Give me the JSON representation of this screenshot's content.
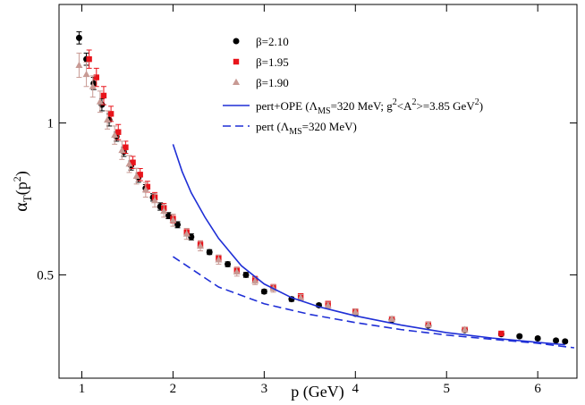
{
  "chart_data": {
    "type": "scatter",
    "xlabel": "p (GeV)",
    "ylabel": [
      "α",
      "T",
      "(p",
      "2",
      ")"
    ],
    "xlim": [
      0.75,
      6.43
    ],
    "ylim": [
      0.16,
      1.39
    ],
    "xticks": [
      1,
      2,
      3,
      4,
      5,
      6
    ],
    "yticks": [
      0.5,
      1
    ],
    "series": [
      {
        "name": [
          "β=2.10"
        ],
        "kind": "scatter",
        "marker": "circle",
        "color": "#000000",
        "x": [
          0.97,
          1.05,
          1.13,
          1.22,
          1.3,
          1.38,
          1.46,
          1.54,
          1.62,
          1.7,
          1.78,
          1.86,
          1.95,
          2.05,
          2.2,
          2.4,
          2.6,
          2.8,
          3.0,
          3.3,
          3.6,
          4.0,
          4.4,
          4.8,
          5.2,
          5.6,
          5.8,
          6.0,
          6.2,
          6.3
        ],
        "values": [
          1.28,
          1.21,
          1.13,
          1.06,
          1.01,
          0.955,
          0.905,
          0.86,
          0.82,
          0.785,
          0.755,
          0.725,
          0.695,
          0.665,
          0.625,
          0.575,
          0.535,
          0.5,
          0.445,
          0.42,
          0.4,
          0.372,
          0.352,
          0.333,
          0.318,
          0.305,
          0.298,
          0.291,
          0.284,
          0.281
        ],
        "errors": [
          0.02,
          0.02,
          0.02,
          0.02,
          0.02,
          0.015,
          0.015,
          0.015,
          0.015,
          0.012,
          0.012,
          0.012,
          0.01,
          0.01,
          0.01,
          0.008,
          0.008,
          0.008,
          0.007,
          0.007,
          0.006,
          0.006,
          0.005,
          0.005,
          0.005,
          0.005,
          0.005,
          0.005,
          0.005,
          0.005
        ]
      },
      {
        "name": [
          "β=1.95"
        ],
        "kind": "scatter",
        "marker": "square",
        "color": "#e8141b",
        "x": [
          1.08,
          1.16,
          1.24,
          1.32,
          1.4,
          1.48,
          1.56,
          1.64,
          1.72,
          1.8,
          1.9,
          2.0,
          2.15,
          2.3,
          2.5,
          2.7,
          2.9,
          3.1,
          3.4,
          3.7,
          4.0,
          4.4,
          4.8,
          5.2,
          5.6
        ],
        "values": [
          1.21,
          1.15,
          1.09,
          1.03,
          0.97,
          0.92,
          0.87,
          0.83,
          0.79,
          0.755,
          0.72,
          0.685,
          0.64,
          0.6,
          0.555,
          0.515,
          0.485,
          0.46,
          0.43,
          0.405,
          0.38,
          0.355,
          0.337,
          0.32,
          0.307
        ],
        "errors": [
          0.03,
          0.03,
          0.03,
          0.025,
          0.025,
          0.02,
          0.02,
          0.02,
          0.018,
          0.016,
          0.015,
          0.014,
          0.012,
          0.012,
          0.01,
          0.01,
          0.01,
          0.008,
          0.008,
          0.008,
          0.007,
          0.007,
          0.006,
          0.006,
          0.006
        ]
      },
      {
        "name": [
          "β=1.90"
        ],
        "kind": "scatter",
        "marker": "triangle",
        "color": "#c89a94",
        "x": [
          0.97,
          1.05,
          1.12,
          1.2,
          1.28,
          1.36,
          1.44,
          1.52,
          1.6,
          1.7,
          1.8,
          1.9,
          2.0,
          2.15,
          2.3,
          2.5,
          2.7,
          2.9,
          3.1,
          3.4,
          3.7,
          4.0,
          4.4,
          4.8,
          5.2
        ],
        "values": [
          1.19,
          1.16,
          1.12,
          1.07,
          1.01,
          0.96,
          0.91,
          0.865,
          0.825,
          0.78,
          0.745,
          0.71,
          0.68,
          0.635,
          0.595,
          0.55,
          0.51,
          0.48,
          0.455,
          0.425,
          0.4,
          0.378,
          0.355,
          0.336,
          0.32
        ],
        "errors": [
          0.04,
          0.04,
          0.035,
          0.035,
          0.03,
          0.03,
          0.03,
          0.028,
          0.026,
          0.024,
          0.022,
          0.02,
          0.02,
          0.018,
          0.016,
          0.015,
          0.014,
          0.012,
          0.012,
          0.01,
          0.01,
          0.009,
          0.008,
          0.008,
          0.008
        ]
      },
      {
        "name": [
          "pert+OPE (Λ",
          "MS",
          "=320 MeV;  g",
          "2",
          "<A",
          "2",
          ">=3.85 GeV",
          "2",
          ")"
        ],
        "kind": "line",
        "style": "solid",
        "color": "#1f2fd6",
        "x": [
          2.0,
          2.1,
          2.2,
          2.35,
          2.5,
          2.75,
          3.0,
          3.3,
          3.6,
          4.0,
          4.5,
          5.0,
          5.5,
          6.0,
          6.3
        ],
        "values": [
          0.93,
          0.84,
          0.77,
          0.69,
          0.62,
          0.53,
          0.47,
          0.425,
          0.395,
          0.365,
          0.335,
          0.31,
          0.292,
          0.278,
          0.27
        ]
      },
      {
        "name": [
          "pert (Λ",
          "MS",
          "=320 MeV)"
        ],
        "kind": "line",
        "style": "dashed",
        "color": "#1f2fd6",
        "x": [
          2.0,
          2.5,
          3.0,
          3.5,
          4.0,
          4.5,
          5.0,
          5.5,
          6.0,
          6.4
        ],
        "values": [
          0.56,
          0.46,
          0.405,
          0.37,
          0.343,
          0.32,
          0.302,
          0.288,
          0.275,
          0.26
        ]
      }
    ]
  }
}
